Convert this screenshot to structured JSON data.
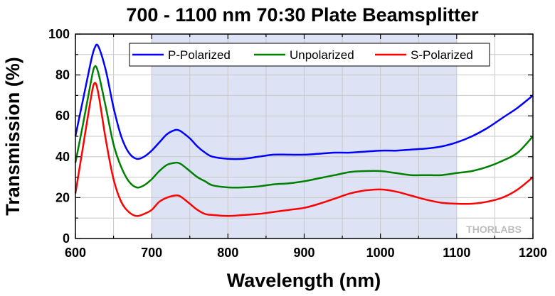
{
  "chart_data": {
    "type": "line",
    "title": "700 - 1100 nm 70:30 Plate Beamsplitter",
    "xlabel": "Wavelength (nm)",
    "ylabel": "Transmission (%)",
    "xlim": [
      600,
      1200
    ],
    "ylim": [
      0,
      100
    ],
    "xticks": [
      "600",
      "700",
      "800",
      "900",
      "1000",
      "1100",
      "1200"
    ],
    "yticks": [
      "0",
      "20",
      "40",
      "60",
      "80",
      "100"
    ],
    "grid": true,
    "legend_position": "top",
    "highlight_region": {
      "x": [
        700,
        1100
      ],
      "color": "#dde3f4"
    },
    "watermark": "THORLABS",
    "x": [
      600,
      610,
      620,
      625,
      630,
      640,
      650,
      660,
      670,
      680,
      690,
      700,
      710,
      720,
      730,
      735,
      740,
      750,
      760,
      770,
      780,
      800,
      820,
      840,
      860,
      880,
      900,
      920,
      940,
      960,
      980,
      1000,
      1020,
      1040,
      1060,
      1080,
      1100,
      1120,
      1140,
      1160,
      1180,
      1200
    ],
    "series": [
      {
        "name": "P-Polarized",
        "color": "#0000ff",
        "values": [
          50,
          68,
          86,
          93,
          94,
          82,
          64,
          50,
          42,
          39,
          40,
          43,
          47,
          51,
          53,
          53,
          52,
          49,
          45,
          42,
          40,
          39,
          39,
          40,
          41,
          41,
          41,
          41.5,
          42,
          42,
          42.5,
          43,
          43,
          43.5,
          44,
          45,
          47,
          50,
          54,
          59,
          64,
          70
        ]
      },
      {
        "name": "Unpolarized",
        "color": "#008000",
        "values": [
          37,
          56,
          76,
          84,
          81,
          64,
          46,
          35,
          28,
          25,
          26,
          29,
          33,
          36,
          37,
          37,
          36,
          33,
          30,
          28,
          26,
          25,
          25,
          25.5,
          26.5,
          27,
          28,
          29.5,
          31,
          32.5,
          33,
          33,
          32,
          31,
          31,
          31,
          32,
          33,
          35,
          38,
          42,
          50
        ]
      },
      {
        "name": "S-Polarized",
        "color": "#ff0000",
        "values": [
          22,
          45,
          68,
          76,
          71,
          48,
          29,
          18,
          13,
          11,
          12,
          14,
          18,
          20,
          21,
          21,
          20,
          17,
          14,
          12,
          11.5,
          11,
          11.5,
          12,
          13,
          14,
          15,
          17,
          19.5,
          22,
          23.5,
          24,
          23,
          21,
          19,
          17.5,
          17,
          17,
          18,
          20,
          24,
          30
        ]
      }
    ]
  }
}
